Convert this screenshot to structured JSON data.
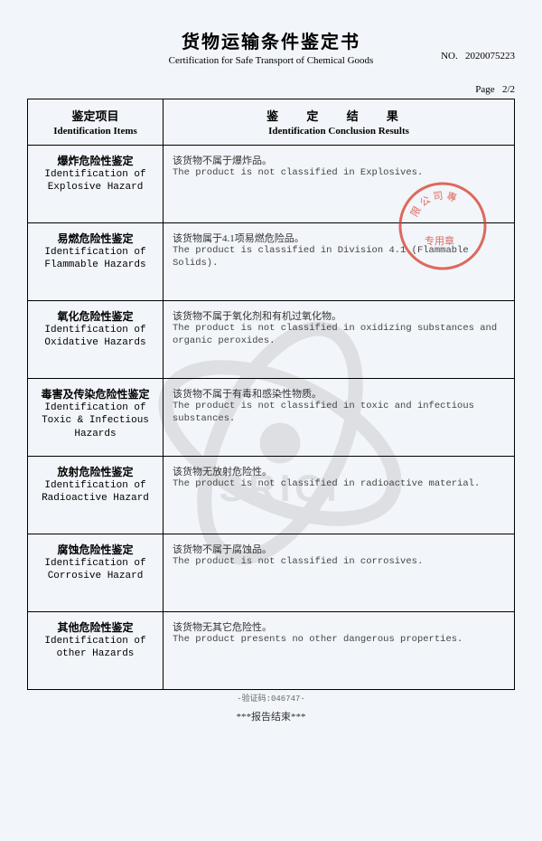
{
  "title_cn": "货物运输条件鉴定书",
  "title_en": "Certification for Safe Transport of Chemical Goods",
  "doc_no_label": "NO.",
  "doc_no_value": "2020075223",
  "page_label": "Page",
  "page_value": "2/2",
  "header": {
    "left_cn": "鉴定项目",
    "left_en": "Identification Items",
    "right_cn": "鉴 定 结 果",
    "right_en": "Identification Conclusion Results"
  },
  "rows": [
    {
      "item_cn": "爆炸危险性鉴定",
      "item_en": "Identification of Explosive Hazard",
      "res_cn": "该货物不属于爆炸品。",
      "res_en": "The product is not classified in Explosives."
    },
    {
      "item_cn": "易燃危险性鉴定",
      "item_en": "Identification of Flammable Hazards",
      "res_cn": "该货物属于4.1项易燃危险品。",
      "res_en": "The product is classified in Division 4.1 (Flammable Solids)."
    },
    {
      "item_cn": "氧化危险性鉴定",
      "item_en": "Identification of Oxidative Hazards",
      "res_cn": "该货物不属于氧化剂和有机过氧化物。",
      "res_en": "The product is not classified in oxidizing substances and organic peroxides."
    },
    {
      "item_cn": "毒害及传染危险性鉴定",
      "item_en": "Identification of Toxic & Infectious Hazards",
      "res_cn": "该货物不属于有毒和感染性物质。",
      "res_en": "The product is not classified in toxic and infectious substances."
    },
    {
      "item_cn": "放射危险性鉴定",
      "item_en": "Identification of Radioactive Hazard",
      "res_cn": "该货物无放射危险性。",
      "res_en": "The product is not classified in radioactive material."
    },
    {
      "item_cn": "腐蚀危险性鉴定",
      "item_en": "Identification of Corrosive Hazard",
      "res_cn": "该货物不属于腐蚀品。",
      "res_en": "The product is not classified in corrosives."
    },
    {
      "item_cn": "其他危险性鉴定",
      "item_en": "Identification of other Hazards",
      "res_cn": "该货物无其它危险性。",
      "res_en": "The product presents no other dangerous properties."
    }
  ],
  "footer_code": "-验证码:046747-",
  "footer_end": "***报告结束***",
  "watermark_text": "SRICI",
  "colors": {
    "stamp": "#d83a2a",
    "border": "#000000",
    "text": "#000000",
    "bg": "#f2f5f9",
    "watermark": "#808080"
  }
}
